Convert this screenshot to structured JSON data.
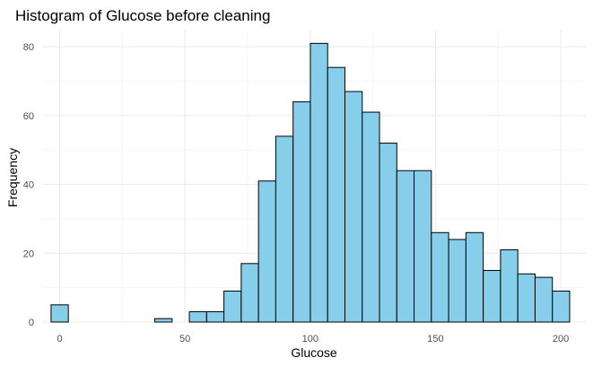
{
  "chart_data": {
    "type": "bar",
    "title": "Histogram of Glucose before cleaning",
    "xlabel": "Glucose",
    "ylabel": "Frequency",
    "xlim": [
      -7,
      210
    ],
    "ylim": [
      0,
      85
    ],
    "x_ticks": [
      0,
      50,
      100,
      150,
      200
    ],
    "y_ticks": [
      0,
      20,
      40,
      60,
      80
    ],
    "grid": true,
    "bar_color": "#87ceeb",
    "bar_outline": "#000000",
    "bin_width": 6.9,
    "bins": [
      {
        "x0": -3.45,
        "x1": 3.45,
        "value": 5
      },
      {
        "x0": 3.45,
        "x1": 10.35,
        "value": 0
      },
      {
        "x0": 10.35,
        "x1": 17.25,
        "value": 0
      },
      {
        "x0": 17.25,
        "x1": 24.15,
        "value": 0
      },
      {
        "x0": 24.15,
        "x1": 31.05,
        "value": 0
      },
      {
        "x0": 31.05,
        "x1": 37.95,
        "value": 0
      },
      {
        "x0": 37.95,
        "x1": 44.85,
        "value": 1
      },
      {
        "x0": 44.85,
        "x1": 51.75,
        "value": 0
      },
      {
        "x0": 51.75,
        "x1": 58.65,
        "value": 3
      },
      {
        "x0": 58.65,
        "x1": 65.55,
        "value": 3
      },
      {
        "x0": 65.55,
        "x1": 72.45,
        "value": 9
      },
      {
        "x0": 72.45,
        "x1": 79.35,
        "value": 17
      },
      {
        "x0": 79.35,
        "x1": 86.25,
        "value": 41
      },
      {
        "x0": 86.25,
        "x1": 93.15,
        "value": 54
      },
      {
        "x0": 93.15,
        "x1": 100.05,
        "value": 64
      },
      {
        "x0": 100.05,
        "x1": 106.95,
        "value": 81
      },
      {
        "x0": 106.95,
        "x1": 113.85,
        "value": 74
      },
      {
        "x0": 113.85,
        "x1": 120.75,
        "value": 67
      },
      {
        "x0": 120.75,
        "x1": 127.65,
        "value": 61
      },
      {
        "x0": 127.65,
        "x1": 134.55,
        "value": 52
      },
      {
        "x0": 134.55,
        "x1": 141.45,
        "value": 44
      },
      {
        "x0": 141.45,
        "x1": 148.35,
        "value": 44
      },
      {
        "x0": 148.35,
        "x1": 155.25,
        "value": 26
      },
      {
        "x0": 155.25,
        "x1": 162.15,
        "value": 24
      },
      {
        "x0": 162.15,
        "x1": 169.05,
        "value": 26
      },
      {
        "x0": 169.05,
        "x1": 175.95,
        "value": 15
      },
      {
        "x0": 175.95,
        "x1": 182.85,
        "value": 21
      },
      {
        "x0": 182.85,
        "x1": 189.75,
        "value": 14
      },
      {
        "x0": 189.75,
        "x1": 196.65,
        "value": 13
      },
      {
        "x0": 196.65,
        "x1": 203.55,
        "value": 9
      }
    ]
  }
}
